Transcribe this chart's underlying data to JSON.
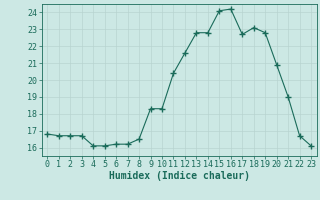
{
  "x": [
    0,
    1,
    2,
    3,
    4,
    5,
    6,
    7,
    8,
    9,
    10,
    11,
    12,
    13,
    14,
    15,
    16,
    17,
    18,
    19,
    20,
    21,
    22,
    23
  ],
  "y": [
    16.8,
    16.7,
    16.7,
    16.7,
    16.1,
    16.1,
    16.2,
    16.2,
    16.5,
    18.3,
    18.3,
    20.4,
    21.6,
    22.8,
    22.8,
    24.1,
    24.2,
    22.7,
    23.1,
    22.8,
    20.9,
    19.0,
    16.7,
    16.1
  ],
  "line_color": "#1a6b5a",
  "marker": "+",
  "marker_size": 4,
  "xlabel": "Humidex (Indice chaleur)",
  "xlim": [
    -0.5,
    23.5
  ],
  "ylim": [
    15.5,
    24.5
  ],
  "yticks": [
    16,
    17,
    18,
    19,
    20,
    21,
    22,
    23,
    24
  ],
  "xticks": [
    0,
    1,
    2,
    3,
    4,
    5,
    6,
    7,
    8,
    9,
    10,
    11,
    12,
    13,
    14,
    15,
    16,
    17,
    18,
    19,
    20,
    21,
    22,
    23
  ],
  "bg_color": "#cce8e4",
  "grid_color_major": "#b8d4d0",
  "grid_color_minor": "#d8ecea",
  "tick_color": "#1a6b5a",
  "label_color": "#1a6b5a",
  "font_family": "monospace",
  "tick_fontsize": 6,
  "xlabel_fontsize": 7
}
